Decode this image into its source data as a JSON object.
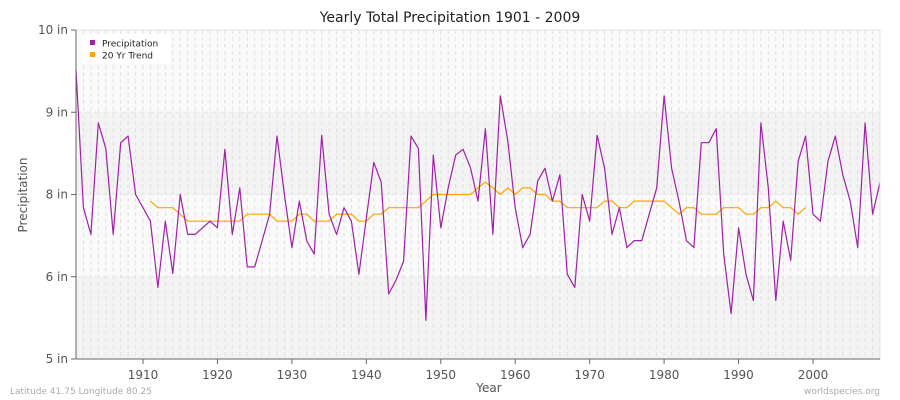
{
  "chart_data": {
    "type": "line",
    "title": "Yearly Total Precipitation 1901 - 2009",
    "xlabel": "Year",
    "ylabel": "Precipitation",
    "xlim": [
      1901,
      2009
    ],
    "x_ticks": [
      1910,
      1920,
      1930,
      1940,
      1950,
      1960,
      1970,
      1980,
      1990,
      2000
    ],
    "y_ticks": [
      {
        "value": 10,
        "label": "10 in"
      },
      {
        "value": 9,
        "label": "9 in"
      },
      {
        "value": 8,
        "label": "8 in"
      },
      {
        "value": 6,
        "label": "6 in"
      },
      {
        "value": 5,
        "label": "5 in"
      }
    ],
    "grid": true,
    "legend": "top-left",
    "series": [
      {
        "name": "Precipitation",
        "color": "#a020a8",
        "x_start": 1901,
        "values": [
          9.52,
          7.68,
          7.03,
          8.87,
          8.56,
          7.03,
          8.63,
          8.71,
          8.0,
          7.68,
          7.35,
          5.87,
          7.35,
          6.08,
          8.0,
          7.03,
          7.03,
          7.19,
          7.35,
          7.19,
          8.55,
          7.03,
          8.08,
          6.24,
          6.24,
          6.87,
          7.52,
          8.71,
          8.0,
          6.71,
          7.84,
          6.87,
          6.55,
          8.72,
          7.52,
          7.03,
          7.68,
          7.35,
          6.06,
          7.42,
          8.39,
          8.15,
          5.79,
          5.96,
          6.38,
          8.71,
          8.56,
          5.47,
          8.48,
          7.19,
          8.08,
          8.48,
          8.55,
          8.32,
          7.84,
          8.8,
          7.03,
          9.2,
          8.65,
          7.68,
          6.71,
          7.03,
          8.16,
          8.32,
          7.84,
          8.24,
          6.06,
          5.87,
          8.0,
          7.35,
          8.72,
          8.32,
          7.03,
          7.68,
          6.71,
          6.88,
          6.88,
          7.52,
          8.08,
          9.2,
          8.32,
          7.84,
          6.88,
          6.71,
          8.63,
          8.63,
          8.8,
          6.55,
          5.55,
          7.19,
          6.06,
          5.71,
          8.87,
          8.08,
          5.71,
          7.35,
          6.4,
          8.4,
          8.71,
          7.52,
          7.35,
          8.4,
          8.71,
          8.24,
          7.84,
          6.71,
          8.87,
          7.52,
          8.15
        ]
      },
      {
        "name": "20 Yr Trend",
        "color": "#ffa500",
        "x_start": 1911,
        "values": [
          7.84,
          7.68,
          7.68,
          7.68,
          7.52,
          7.35,
          7.35,
          7.35,
          7.35,
          7.35,
          7.35,
          7.35,
          7.35,
          7.52,
          7.52,
          7.52,
          7.52,
          7.35,
          7.35,
          7.35,
          7.52,
          7.52,
          7.35,
          7.35,
          7.35,
          7.52,
          7.52,
          7.52,
          7.35,
          7.35,
          7.52,
          7.52,
          7.68,
          7.68,
          7.68,
          7.68,
          7.68,
          7.84,
          8.0,
          8.0,
          8.0,
          8.0,
          8.0,
          8.0,
          8.08,
          8.15,
          8.08,
          8.0,
          8.08,
          8.0,
          8.08,
          8.08,
          8.0,
          8.0,
          7.84,
          7.84,
          7.68,
          7.68,
          7.68,
          7.68,
          7.68,
          7.84,
          7.84,
          7.68,
          7.68,
          7.84,
          7.84,
          7.84,
          7.84,
          7.84,
          7.68,
          7.52,
          7.68,
          7.68,
          7.52,
          7.52,
          7.52,
          7.68,
          7.68,
          7.68,
          7.52,
          7.52,
          7.68,
          7.68,
          7.84,
          7.68,
          7.68,
          7.52,
          7.68
        ]
      }
    ]
  },
  "footer": {
    "location": "Latitude 41.75 Longitude 80.25",
    "source": "worldspecies.org"
  }
}
